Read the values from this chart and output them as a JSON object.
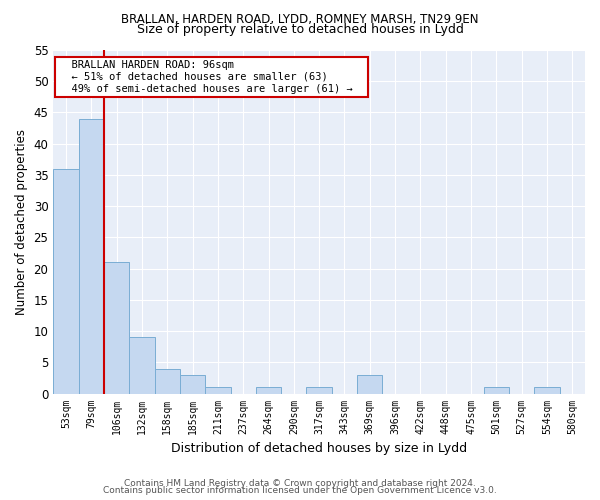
{
  "title1": "BRALLAN, HARDEN ROAD, LYDD, ROMNEY MARSH, TN29 9EN",
  "title2": "Size of property relative to detached houses in Lydd",
  "xlabel": "Distribution of detached houses by size in Lydd",
  "ylabel": "Number of detached properties",
  "footer1": "Contains HM Land Registry data © Crown copyright and database right 2024.",
  "footer2": "Contains public sector information licensed under the Open Government Licence v3.0.",
  "annotation_line1": "BRALLAN HARDEN ROAD: 96sqm",
  "annotation_line2": "← 51% of detached houses are smaller (63)",
  "annotation_line3": "49% of semi-detached houses are larger (61) →",
  "bin_labels": [
    "53sqm",
    "79sqm",
    "106sqm",
    "132sqm",
    "158sqm",
    "185sqm",
    "211sqm",
    "237sqm",
    "264sqm",
    "290sqm",
    "317sqm",
    "343sqm",
    "369sqm",
    "396sqm",
    "422sqm",
    "448sqm",
    "475sqm",
    "501sqm",
    "527sqm",
    "554sqm",
    "580sqm"
  ],
  "bar_values": [
    36,
    44,
    21,
    9,
    4,
    3,
    1,
    0,
    1,
    0,
    1,
    0,
    3,
    0,
    0,
    0,
    0,
    1,
    0,
    1,
    0
  ],
  "bar_color": "#c5d8f0",
  "bar_edge_color": "#7aadd4",
  "vline_color": "#cc0000",
  "annotation_box_color": "#cc0000",
  "ylim": [
    0,
    55
  ],
  "yticks": [
    0,
    5,
    10,
    15,
    20,
    25,
    30,
    35,
    40,
    45,
    50,
    55
  ],
  "bg_color": "#e8eef8",
  "fig_bg_color": "#ffffff",
  "grid_color": "#ffffff",
  "title1_fontsize": 8.5,
  "title2_fontsize": 9,
  "ylabel_fontsize": 8.5,
  "xlabel_fontsize": 9
}
